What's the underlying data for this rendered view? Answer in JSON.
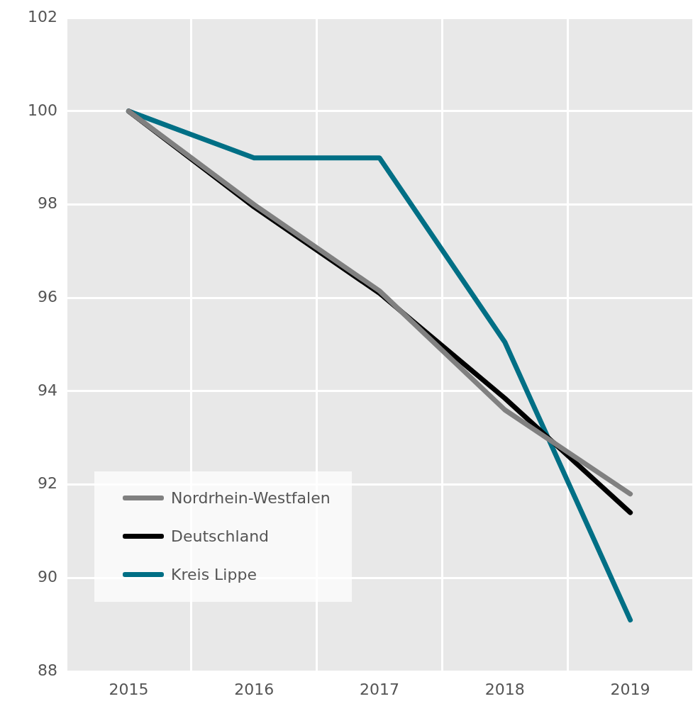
{
  "chart_data": {
    "type": "line",
    "categories": [
      "2015",
      "2016",
      "2017",
      "2018",
      "2019"
    ],
    "series": [
      {
        "name": "Nordrhein-Westfalen",
        "color": "#808080",
        "values": [
          100,
          98,
          96.15,
          93.6,
          91.8
        ]
      },
      {
        "name": "Deutschland",
        "color": "#000000",
        "values": [
          100,
          97.95,
          96.1,
          93.85,
          91.4
        ]
      },
      {
        "name": "Kreis Lippe",
        "color": "#006f85",
        "values": [
          100,
          99,
          99,
          95.05,
          89.1
        ]
      }
    ],
    "ylim": [
      88,
      102
    ],
    "yticks": [
      88,
      90,
      92,
      94,
      96,
      98,
      100,
      102
    ],
    "grid": true,
    "legend": "bottom left",
    "marker": "none",
    "line_style": "solid"
  }
}
